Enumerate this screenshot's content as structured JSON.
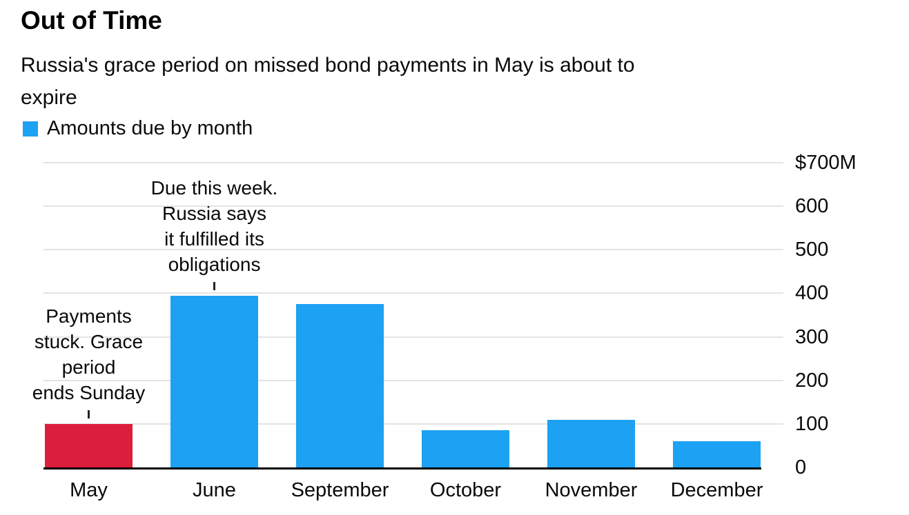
{
  "header": {
    "title": "Out of Time",
    "subtitle": "Russia's grace period on missed bond payments in May is about to\nexpire"
  },
  "legend": {
    "label": "Amounts due by month",
    "swatch_color": "#1da1f2"
  },
  "chart_data": {
    "type": "bar",
    "title": "Out of Time",
    "subtitle": "Russia's grace period on missed bond payments in May is about to expire",
    "legend": "Amounts due by month",
    "categories": [
      "May",
      "June",
      "September",
      "October",
      "November",
      "December"
    ],
    "values": [
      100,
      395,
      375,
      85,
      110,
      60
    ],
    "bar_colors": [
      "#dc1e3d",
      "#1da1f2",
      "#1da1f2",
      "#1da1f2",
      "#1da1f2",
      "#1da1f2"
    ],
    "ylim": [
      0,
      700
    ],
    "grid": "horizontal",
    "y_axis_position": "right",
    "yticks": [
      {
        "value": 700,
        "label": "$700M"
      },
      {
        "value": 600,
        "label": "600"
      },
      {
        "value": 500,
        "label": "500"
      },
      {
        "value": 400,
        "label": "400"
      },
      {
        "value": 300,
        "label": "300"
      },
      {
        "value": 200,
        "label": "200"
      },
      {
        "value": 100,
        "label": "100"
      },
      {
        "value": 0,
        "label": "0"
      }
    ],
    "annotations": [
      {
        "target": "May",
        "text": "Payments\nstuck. Grace\nperiod\nends Sunday"
      },
      {
        "target": "June",
        "text": "Due this week.\nRussia says\nit fulfilled its\nobligations"
      }
    ]
  }
}
